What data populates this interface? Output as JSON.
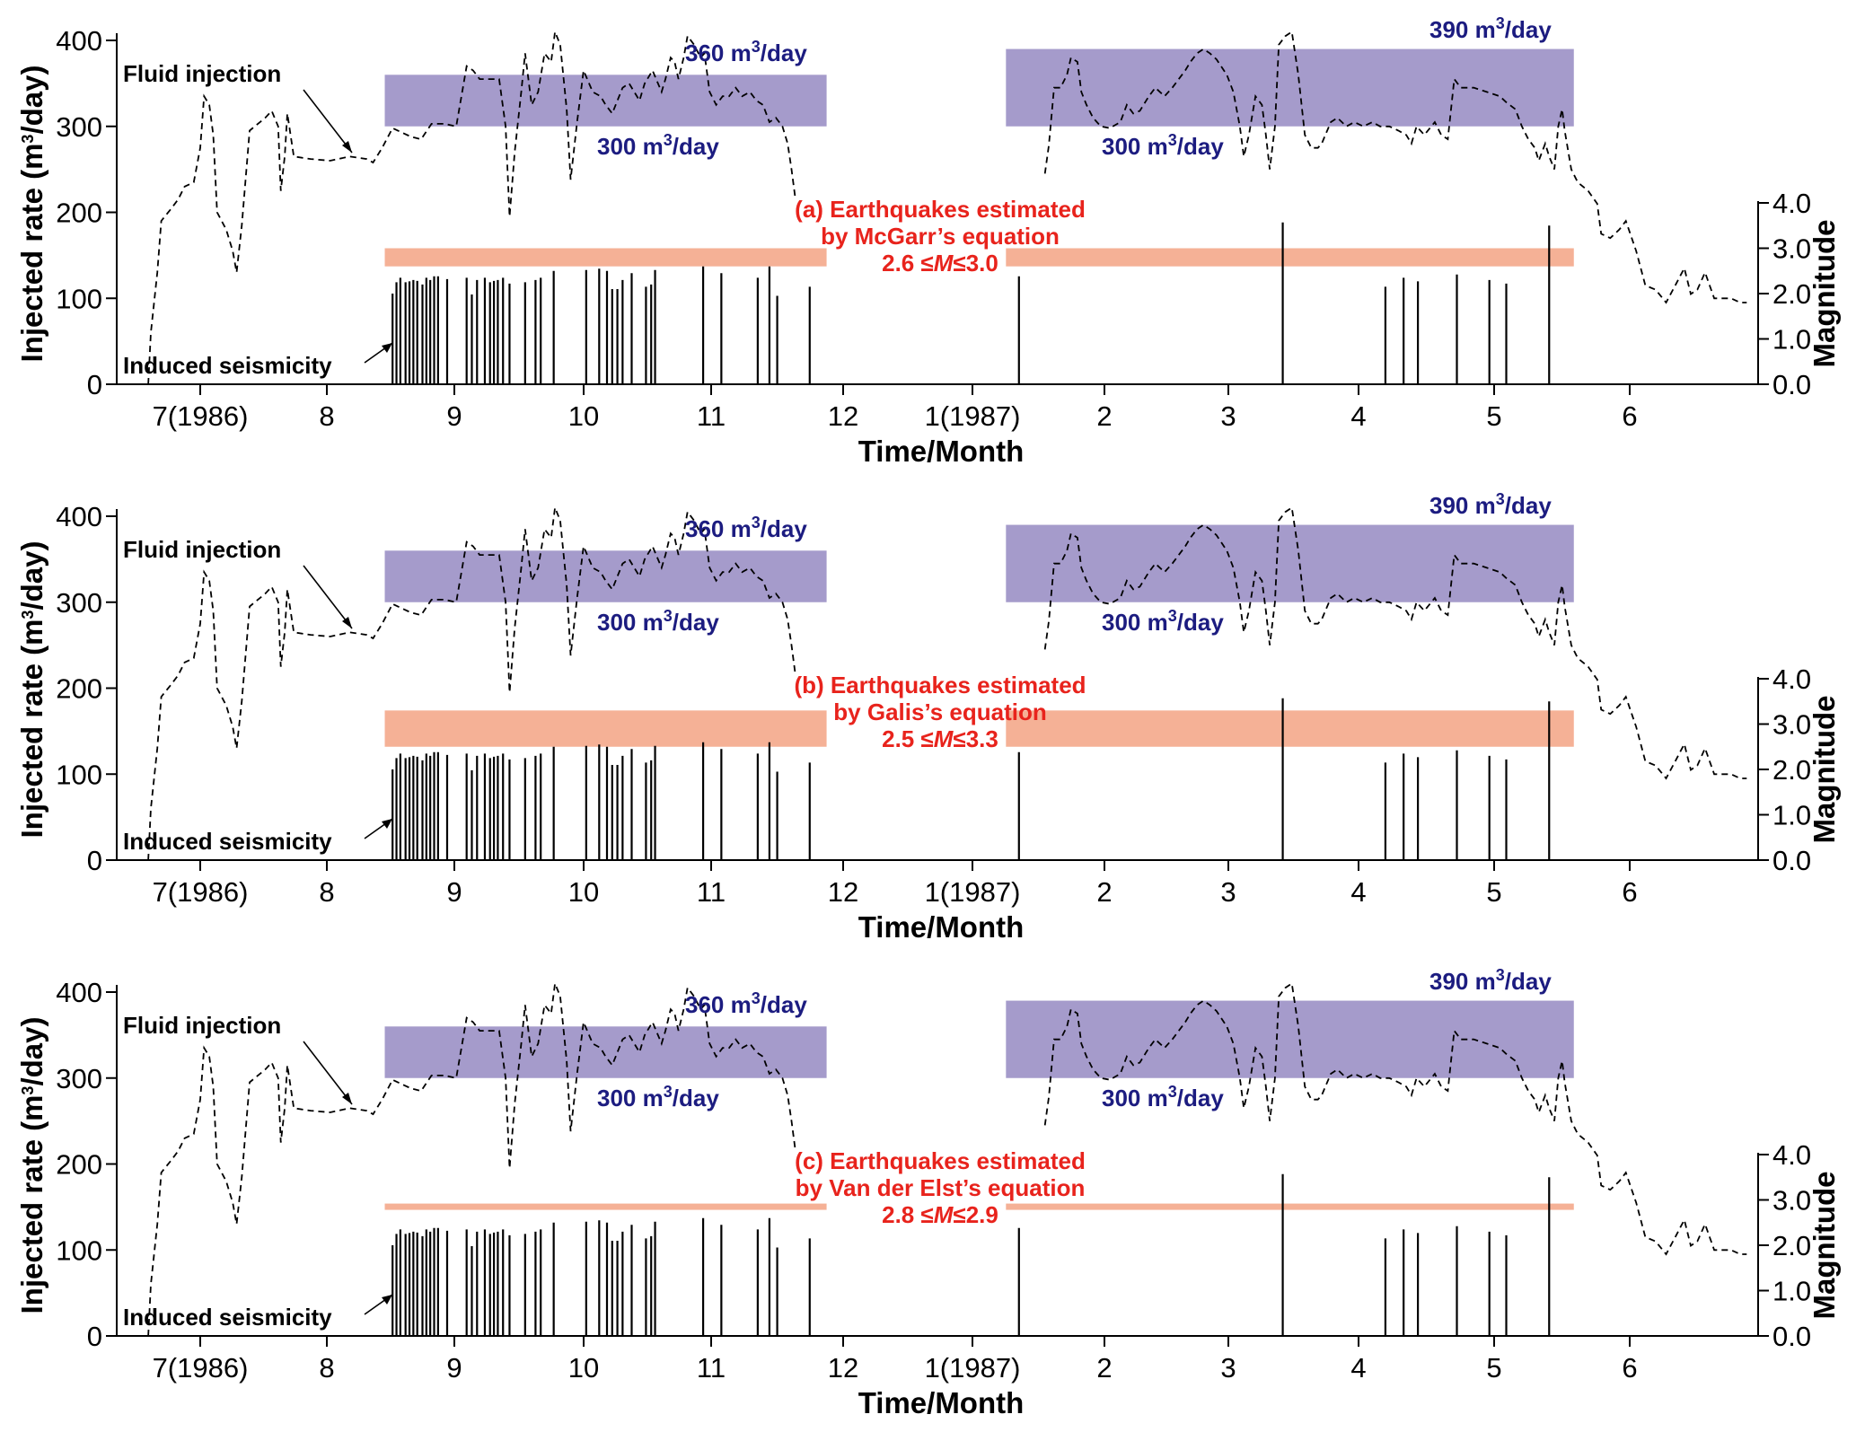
{
  "colors": {
    "band_injection": "#a59bcb",
    "band_magnitude": "#f5b196",
    "band_label": "#1c1c80",
    "red_label": "#e8231c",
    "axis": "#000000"
  },
  "months": [
    "7(1986)",
    "8",
    "9",
    "10",
    "11",
    "12",
    "1(1987)",
    "2",
    "3",
    "4",
    "5",
    "6"
  ],
  "xlabel": "Time/Month",
  "ylabel_left": "Injected rate (m³/day)",
  "ylabel_left_parts": {
    "pre": "Injected rate (m",
    "sup": "3",
    "post": "/day)"
  },
  "ylabel_right": "Magnitude",
  "left_ticks": [
    "0",
    "100",
    "200",
    "300",
    "400"
  ],
  "right_ticks": [
    "0.0",
    "1.0",
    "2.0",
    "3.0",
    "4.0"
  ],
  "annotation_fluid": "Fluid injection",
  "annotation_seismicity": "Induced seismicity",
  "band_labels": {
    "p1_upper": {
      "num": "360 m",
      "sup": "3",
      "unit": "/day"
    },
    "p1_lower": {
      "num": "300 m",
      "sup": "3",
      "unit": "/day"
    },
    "p2_upper": {
      "num": "390 m",
      "sup": "3",
      "unit": "/day"
    },
    "p2_lower": {
      "num": "300 m",
      "sup": "3",
      "unit": "/day"
    }
  },
  "chart_data": [
    {
      "type": "line",
      "panel": "(a)",
      "title_line1": "(a) Earthquakes estimated",
      "title_line2": "by McGarr’s equation",
      "range_text": {
        "pre": "2.6 ≤",
        "var": "M",
        "post": "≤3.0"
      },
      "mag_range": [
        2.6,
        3.0
      ],
      "right_axis_scale": 1.0
    },
    {
      "type": "line",
      "panel": "(b)",
      "title_line1": "(b) Earthquakes estimated",
      "title_line2": "by Galis’s equation",
      "range_text": {
        "pre": "2.5 ≤",
        "var": "M",
        "post": "≤3.3"
      },
      "mag_range": [
        2.5,
        3.3
      ],
      "right_axis_scale": 1.0
    },
    {
      "type": "line",
      "panel": "(c)",
      "title_line1": "(c) Earthquakes estimated",
      "title_line2": "by Van der Elst’s equation",
      "range_text": {
        "pre": "2.8 ≤",
        "var": "M",
        "post": "≤2.9"
      },
      "mag_range": [
        2.8,
        2.9
      ],
      "right_axis_scale": 1.0
    }
  ],
  "shared_series": {
    "x_unit": "month index (0 = July 1986 tick)",
    "xlim": [
      -0.65,
      11.95
    ],
    "ylim_left": [
      0,
      400
    ],
    "ylim_right": [
      0,
      4.0
    ],
    "injection_bands": [
      {
        "x": [
          1.42,
          4.82
        ],
        "y": [
          300,
          360
        ]
      },
      {
        "x": [
          6.2,
          10.57
        ],
        "y": [
          300,
          390
        ]
      }
    ],
    "magnitude_band_x": [
      [
        1.42,
        4.82
      ],
      [
        6.2,
        10.57
      ]
    ],
    "injection_series_1": [
      [
        -0.4,
        0
      ],
      [
        -0.38,
        60
      ],
      [
        -0.33,
        130
      ],
      [
        -0.3,
        190
      ],
      [
        -0.22,
        205
      ],
      [
        -0.17,
        215
      ],
      [
        -0.12,
        230
      ],
      [
        -0.05,
        235
      ],
      [
        0.0,
        275
      ],
      [
        0.03,
        335
      ],
      [
        0.07,
        325
      ],
      [
        0.1,
        290
      ],
      [
        0.13,
        200
      ],
      [
        0.2,
        180
      ],
      [
        0.25,
        155
      ],
      [
        0.28,
        130
      ],
      [
        0.32,
        185
      ],
      [
        0.38,
        295
      ],
      [
        0.5,
        310
      ],
      [
        0.55,
        318
      ],
      [
        0.6,
        300
      ],
      [
        0.62,
        225
      ],
      [
        0.65,
        265
      ],
      [
        0.67,
        315
      ],
      [
        0.72,
        265
      ],
      [
        0.85,
        262
      ],
      [
        1.0,
        260
      ],
      [
        1.15,
        265
      ],
      [
        1.28,
        262
      ],
      [
        1.33,
        258
      ],
      [
        1.4,
        275
      ],
      [
        1.48,
        298
      ],
      [
        1.55,
        293
      ],
      [
        1.62,
        288
      ],
      [
        1.7,
        285
      ],
      [
        1.78,
        303
      ],
      [
        1.88,
        303
      ],
      [
        1.97,
        300
      ],
      [
        2.05,
        370
      ],
      [
        2.1,
        365
      ],
      [
        2.15,
        355
      ],
      [
        2.3,
        355
      ],
      [
        2.35,
        300
      ],
      [
        2.38,
        195
      ],
      [
        2.42,
        270
      ],
      [
        2.47,
        340
      ],
      [
        2.5,
        385
      ],
      [
        2.55,
        325
      ],
      [
        2.6,
        340
      ],
      [
        2.65,
        385
      ],
      [
        2.7,
        375
      ],
      [
        2.73,
        410
      ],
      [
        2.77,
        395
      ],
      [
        2.82,
        320
      ],
      [
        2.85,
        238
      ],
      [
        2.9,
        305
      ],
      [
        2.95,
        365
      ],
      [
        3.02,
        340
      ],
      [
        3.08,
        335
      ],
      [
        3.12,
        325
      ],
      [
        3.17,
        315
      ],
      [
        3.25,
        345
      ],
      [
        3.3,
        350
      ],
      [
        3.38,
        330
      ],
      [
        3.42,
        350
      ],
      [
        3.48,
        365
      ],
      [
        3.55,
        340
      ],
      [
        3.58,
        355
      ],
      [
        3.62,
        380
      ],
      [
        3.65,
        375
      ],
      [
        3.68,
        355
      ],
      [
        3.72,
        380
      ],
      [
        3.75,
        405
      ],
      [
        3.8,
        395
      ],
      [
        3.85,
        380
      ],
      [
        3.88,
        385
      ],
      [
        3.92,
        340
      ],
      [
        3.97,
        325
      ],
      [
        4.02,
        335
      ],
      [
        4.07,
        335
      ],
      [
        4.12,
        345
      ],
      [
        4.17,
        335
      ],
      [
        4.23,
        340
      ],
      [
        4.28,
        330
      ],
      [
        4.33,
        325
      ],
      [
        4.38,
        305
      ],
      [
        4.43,
        310
      ],
      [
        4.48,
        300
      ],
      [
        4.52,
        280
      ],
      [
        4.55,
        250
      ],
      [
        4.58,
        215
      ]
    ],
    "injection_series_2": [
      [
        6.5,
        245
      ],
      [
        6.53,
        278
      ],
      [
        6.57,
        345
      ],
      [
        6.62,
        345
      ],
      [
        6.67,
        360
      ],
      [
        6.7,
        380
      ],
      [
        6.75,
        375
      ],
      [
        6.78,
        340
      ],
      [
        6.82,
        325
      ],
      [
        6.87,
        310
      ],
      [
        6.93,
        300
      ],
      [
        7.0,
        298
      ],
      [
        7.08,
        305
      ],
      [
        7.13,
        325
      ],
      [
        7.18,
        315
      ],
      [
        7.23,
        318
      ],
      [
        7.3,
        335
      ],
      [
        7.35,
        345
      ],
      [
        7.42,
        335
      ],
      [
        7.48,
        345
      ],
      [
        7.53,
        355
      ],
      [
        7.58,
        365
      ],
      [
        7.62,
        375
      ],
      [
        7.67,
        385
      ],
      [
        7.72,
        390
      ],
      [
        7.77,
        385
      ],
      [
        7.82,
        378
      ],
      [
        7.9,
        360
      ],
      [
        7.95,
        340
      ],
      [
        8.0,
        300
      ],
      [
        8.03,
        265
      ],
      [
        8.07,
        290
      ],
      [
        8.12,
        335
      ],
      [
        8.17,
        325
      ],
      [
        8.2,
        290
      ],
      [
        8.23,
        250
      ],
      [
        8.27,
        300
      ],
      [
        8.3,
        395
      ],
      [
        8.35,
        405
      ],
      [
        8.4,
        410
      ],
      [
        8.45,
        360
      ],
      [
        8.5,
        290
      ],
      [
        8.55,
        275
      ],
      [
        8.6,
        275
      ],
      [
        8.63,
        280
      ],
      [
        8.7,
        305
      ],
      [
        8.75,
        310
      ],
      [
        8.82,
        300
      ],
      [
        8.88,
        305
      ],
      [
        8.95,
        300
      ],
      [
        9.02,
        305
      ],
      [
        9.08,
        300
      ],
      [
        9.15,
        300
      ],
      [
        9.22,
        295
      ],
      [
        9.28,
        290
      ],
      [
        9.32,
        280
      ],
      [
        9.36,
        300
      ],
      [
        9.42,
        290
      ],
      [
        9.5,
        305
      ],
      [
        9.55,
        290
      ],
      [
        9.6,
        285
      ],
      [
        9.65,
        355
      ],
      [
        9.7,
        345
      ],
      [
        9.8,
        345
      ],
      [
        9.9,
        340
      ],
      [
        10.0,
        335
      ],
      [
        10.05,
        328
      ],
      [
        10.12,
        320
      ],
      [
        10.17,
        300
      ],
      [
        10.22,
        285
      ],
      [
        10.27,
        275
      ],
      [
        10.3,
        260
      ],
      [
        10.35,
        280
      ],
      [
        10.38,
        265
      ],
      [
        10.42,
        250
      ],
      [
        10.45,
        300
      ],
      [
        10.48,
        320
      ],
      [
        10.5,
        295
      ],
      [
        10.55,
        250
      ],
      [
        10.6,
        235
      ],
      [
        10.68,
        225
      ],
      [
        10.75,
        210
      ],
      [
        10.78,
        175
      ],
      [
        10.85,
        170
      ],
      [
        10.92,
        180
      ],
      [
        10.97,
        190
      ],
      [
        11.05,
        155
      ],
      [
        11.12,
        115
      ],
      [
        11.2,
        110
      ],
      [
        11.28,
        95
      ],
      [
        11.35,
        115
      ],
      [
        11.42,
        135
      ],
      [
        11.47,
        105
      ],
      [
        11.52,
        110
      ],
      [
        11.58,
        130
      ],
      [
        11.65,
        100
      ],
      [
        11.72,
        100
      ],
      [
        11.78,
        100
      ],
      [
        11.85,
        95
      ],
      [
        11.9,
        95
      ]
    ],
    "earthquakes": [
      [
        1.48,
        2.0
      ],
      [
        1.51,
        2.25
      ],
      [
        1.54,
        2.35
      ],
      [
        1.58,
        2.25
      ],
      [
        1.61,
        2.27
      ],
      [
        1.64,
        2.3
      ],
      [
        1.67,
        2.28
      ],
      [
        1.71,
        2.2
      ],
      [
        1.74,
        2.35
      ],
      [
        1.77,
        2.3
      ],
      [
        1.8,
        2.38
      ],
      [
        1.83,
        2.38
      ],
      [
        1.9,
        2.32
      ],
      [
        2.05,
        2.35
      ],
      [
        2.09,
        1.98
      ],
      [
        2.13,
        2.3
      ],
      [
        2.19,
        2.35
      ],
      [
        2.23,
        2.25
      ],
      [
        2.26,
        2.28
      ],
      [
        2.29,
        2.3
      ],
      [
        2.33,
        2.35
      ],
      [
        2.38,
        2.22
      ],
      [
        2.5,
        2.25
      ],
      [
        2.58,
        2.3
      ],
      [
        2.62,
        2.35
      ],
      [
        2.72,
        2.5
      ],
      [
        2.97,
        2.52
      ],
      [
        3.07,
        2.55
      ],
      [
        3.13,
        2.5
      ],
      [
        3.17,
        2.1
      ],
      [
        3.21,
        2.1
      ],
      [
        3.25,
        2.3
      ],
      [
        3.32,
        2.45
      ],
      [
        3.43,
        2.15
      ],
      [
        3.47,
        2.2
      ],
      [
        3.5,
        2.52
      ],
      [
        3.87,
        2.6
      ],
      [
        4.01,
        2.45
      ],
      [
        4.29,
        2.35
      ],
      [
        4.38,
        2.6
      ],
      [
        4.44,
        1.95
      ],
      [
        4.69,
        2.15
      ],
      [
        6.3,
        2.38
      ],
      [
        8.33,
        3.57
      ],
      [
        9.12,
        2.15
      ],
      [
        9.26,
        2.35
      ],
      [
        9.37,
        2.27
      ],
      [
        9.67,
        2.42
      ],
      [
        9.92,
        2.3
      ],
      [
        10.05,
        2.22
      ],
      [
        10.38,
        3.5
      ]
    ]
  }
}
